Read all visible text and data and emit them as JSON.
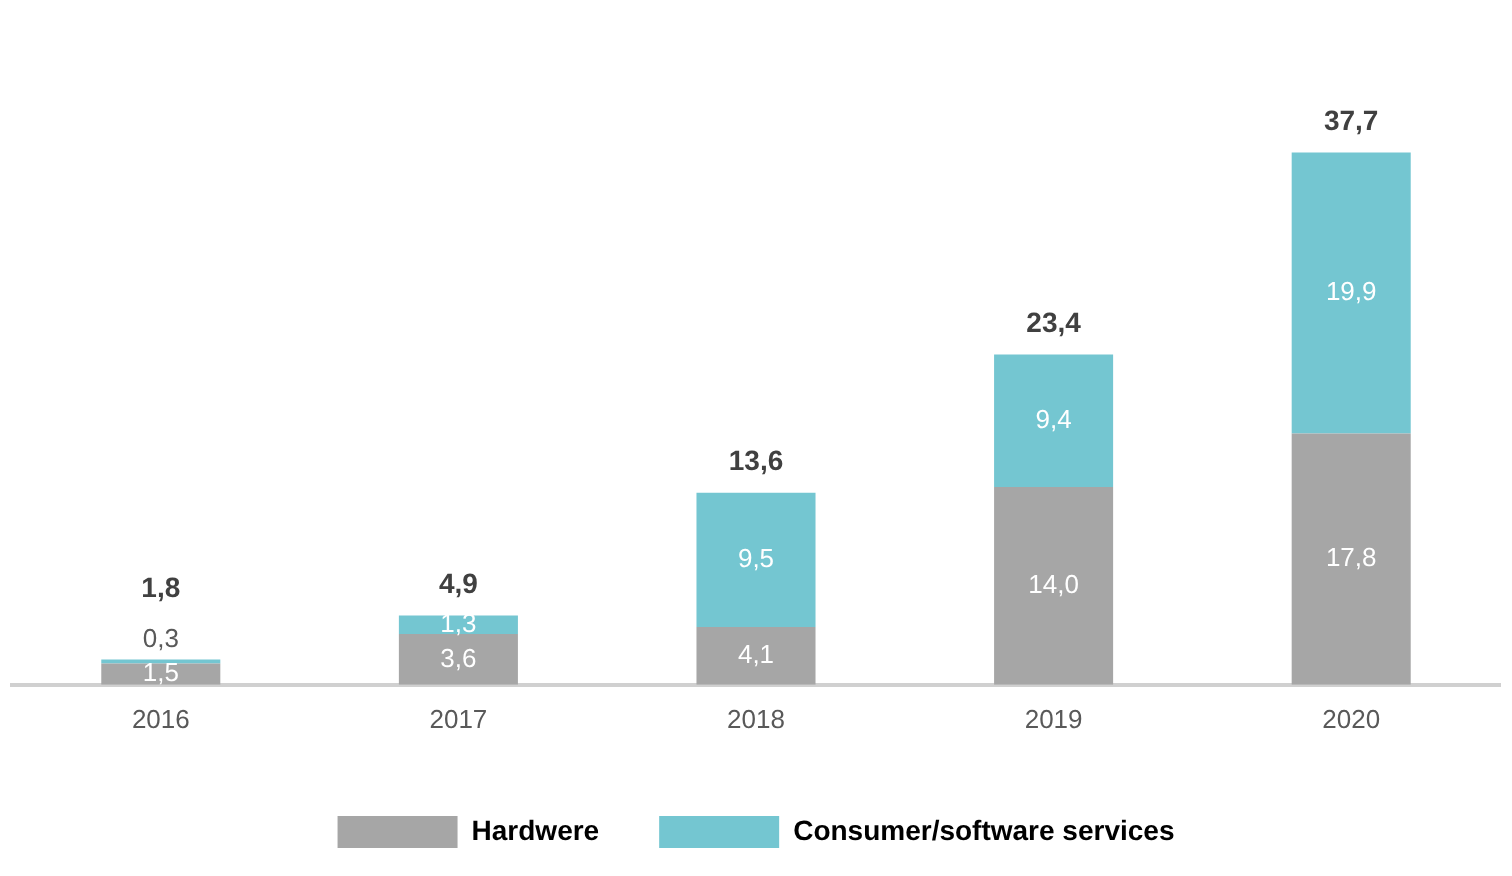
{
  "chart_data": {
    "type": "bar",
    "stacked": true,
    "categories": [
      "2016",
      "2017",
      "2018",
      "2019",
      "2020"
    ],
    "series": [
      {
        "name": "Hardwere",
        "color": "#a6a6a6",
        "values": [
          1.5,
          3.6,
          4.1,
          14.0,
          17.8
        ],
        "value_labels": [
          "1,5",
          "3,6",
          "4,1",
          "14,0",
          "17,8"
        ]
      },
      {
        "name": "Consumer/software services",
        "color": "#74c6d1",
        "values": [
          0.3,
          1.3,
          9.5,
          9.4,
          19.9
        ],
        "value_labels": [
          "0,3",
          "1,3",
          "9,5",
          "9,4",
          "19,9"
        ]
      }
    ],
    "totals": [
      "1,8",
      "4,9",
      "13,6",
      "23,4",
      "37,7"
    ],
    "legend": "bottom",
    "grid": false,
    "tick_labels": "x"
  }
}
